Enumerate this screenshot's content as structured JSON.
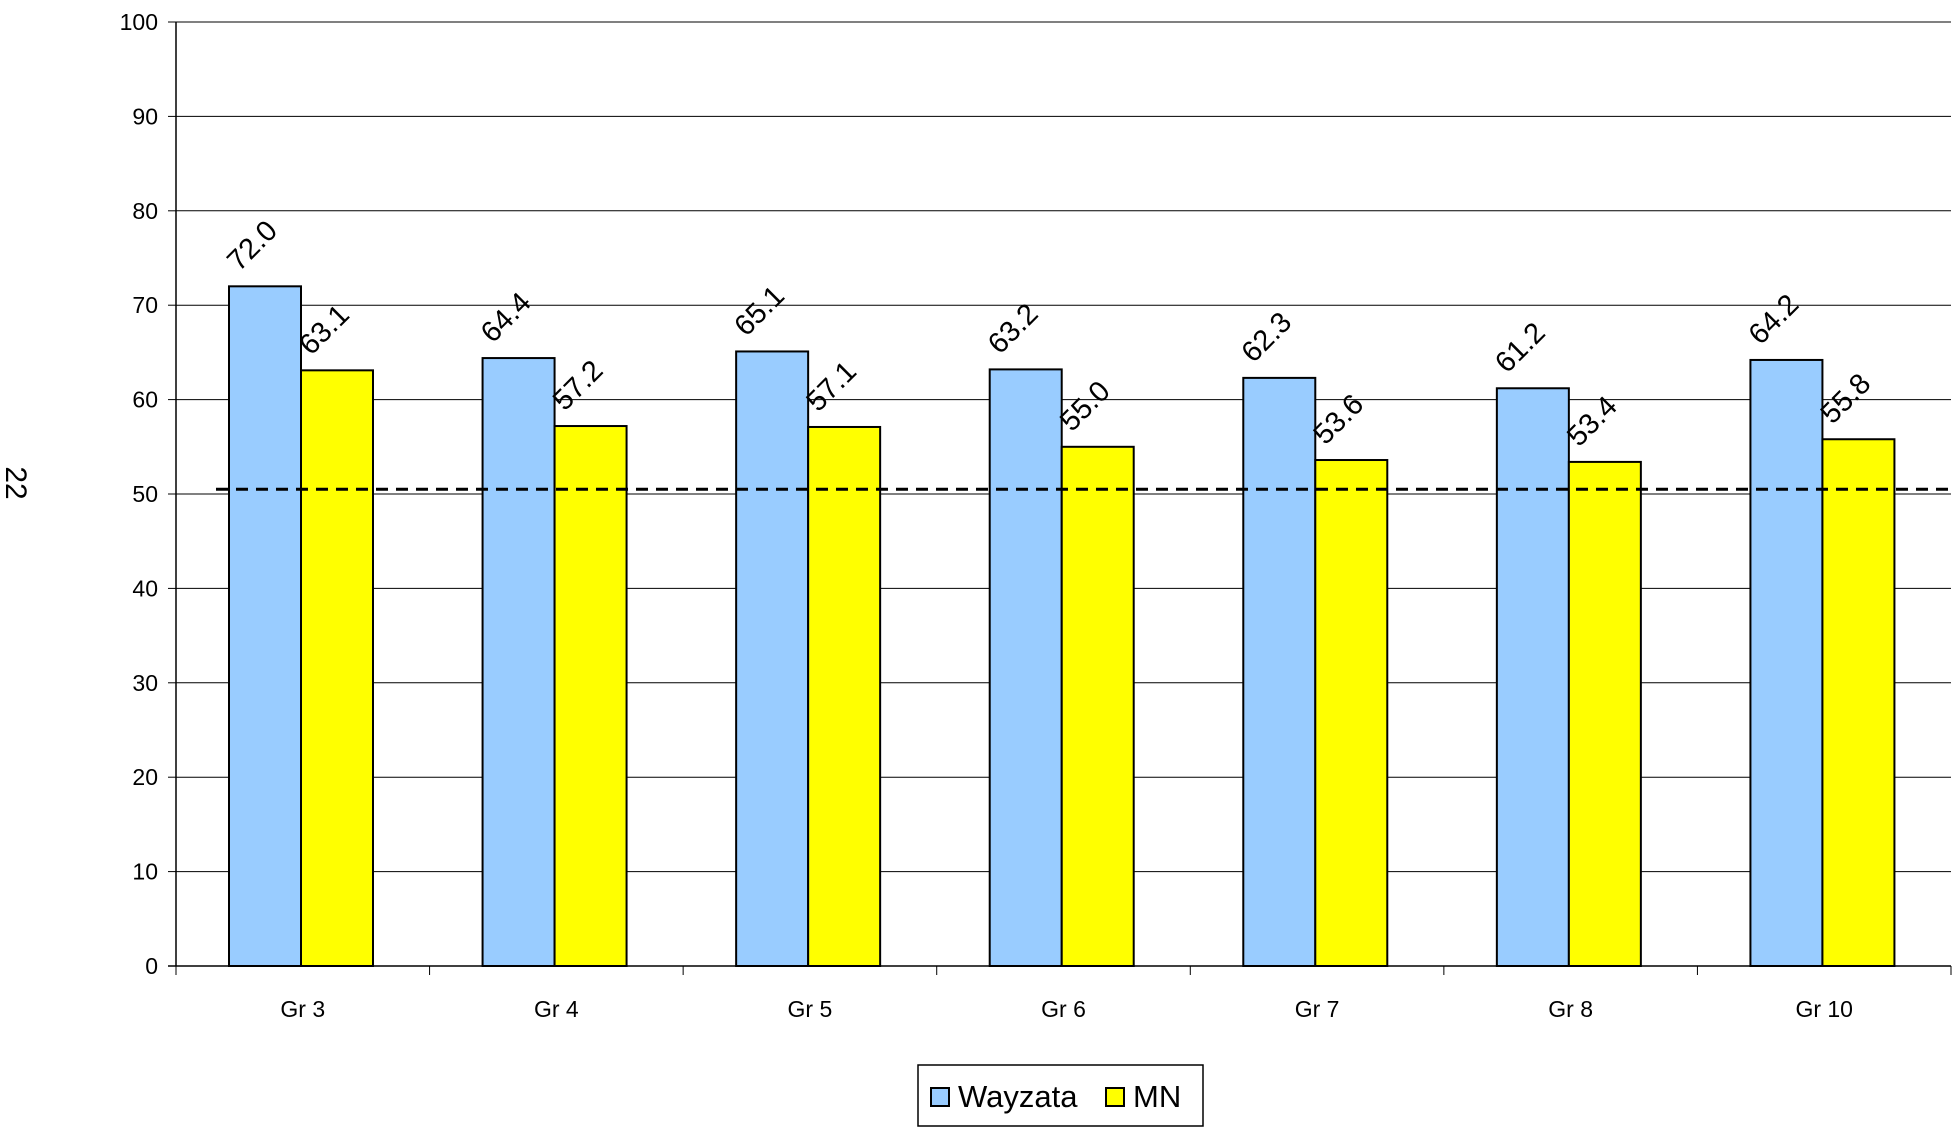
{
  "page": {
    "number": "22"
  },
  "chart_data": {
    "type": "bar",
    "categories": [
      "Gr 3",
      "Gr 4",
      "Gr 5",
      "Gr 6",
      "Gr 7",
      "Gr 8",
      "Gr 10"
    ],
    "series": [
      {
        "name": "Wayzata",
        "values": [
          72.0,
          64.4,
          65.1,
          63.2,
          62.3,
          61.2,
          64.2
        ],
        "color": "#99CCFF"
      },
      {
        "name": "MN",
        "values": [
          63.1,
          57.2,
          57.1,
          55.0,
          53.6,
          53.4,
          55.8
        ],
        "color": "#FFFF00"
      }
    ],
    "data_labels": [
      [
        "72.0",
        "64.4",
        "65.1",
        "63.2",
        "62.3",
        "61.2",
        "64.2"
      ],
      [
        "63.1",
        "57.2",
        "57.1",
        "55.0",
        "53.6",
        "53.4",
        "55.8"
      ]
    ],
    "title": "",
    "xlabel": "",
    "ylabel": "",
    "ylim": [
      0,
      100
    ],
    "yticks": [
      "0",
      "10",
      "20",
      "30",
      "40",
      "50",
      "60",
      "70",
      "80",
      "90",
      "100"
    ],
    "reference_line": {
      "value": 50.5,
      "style": "dashed"
    },
    "grid": true,
    "legend_position": "bottom-center"
  }
}
